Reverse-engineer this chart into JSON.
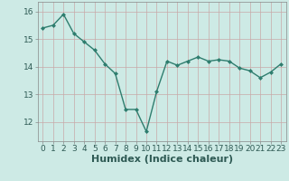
{
  "x": [
    0,
    1,
    2,
    3,
    4,
    5,
    6,
    7,
    8,
    9,
    10,
    11,
    12,
    13,
    14,
    15,
    16,
    17,
    18,
    19,
    20,
    21,
    22,
    23
  ],
  "y": [
    15.4,
    15.5,
    15.9,
    15.2,
    14.9,
    14.6,
    14.1,
    13.75,
    12.45,
    12.45,
    11.65,
    13.1,
    14.2,
    14.05,
    14.2,
    14.35,
    14.2,
    14.25,
    14.2,
    13.95,
    13.85,
    13.6,
    13.8,
    14.1
  ],
  "line_color": "#2e7d6e",
  "marker": "D",
  "marker_size": 2.0,
  "bg_color": "#cdeae5",
  "grid_color": "#c8a8a8",
  "xlabel": "Humidex (Indice chaleur)",
  "xlabel_fontsize": 8,
  "ylabel_ticks": [
    12,
    13,
    14,
    15,
    16
  ],
  "xlim": [
    -0.5,
    23.5
  ],
  "ylim": [
    11.3,
    16.35
  ],
  "ytick_labels": [
    "12",
    "13",
    "14",
    "15",
    "16"
  ],
  "xtick_labels": [
    "0",
    "1",
    "2",
    "3",
    "4",
    "5",
    "6",
    "7",
    "8",
    "9",
    "10",
    "11",
    "12",
    "13",
    "14",
    "15",
    "16",
    "17",
    "18",
    "19",
    "20",
    "21",
    "22",
    "23"
  ],
  "tick_fontsize": 6.5,
  "line_width": 1.0
}
